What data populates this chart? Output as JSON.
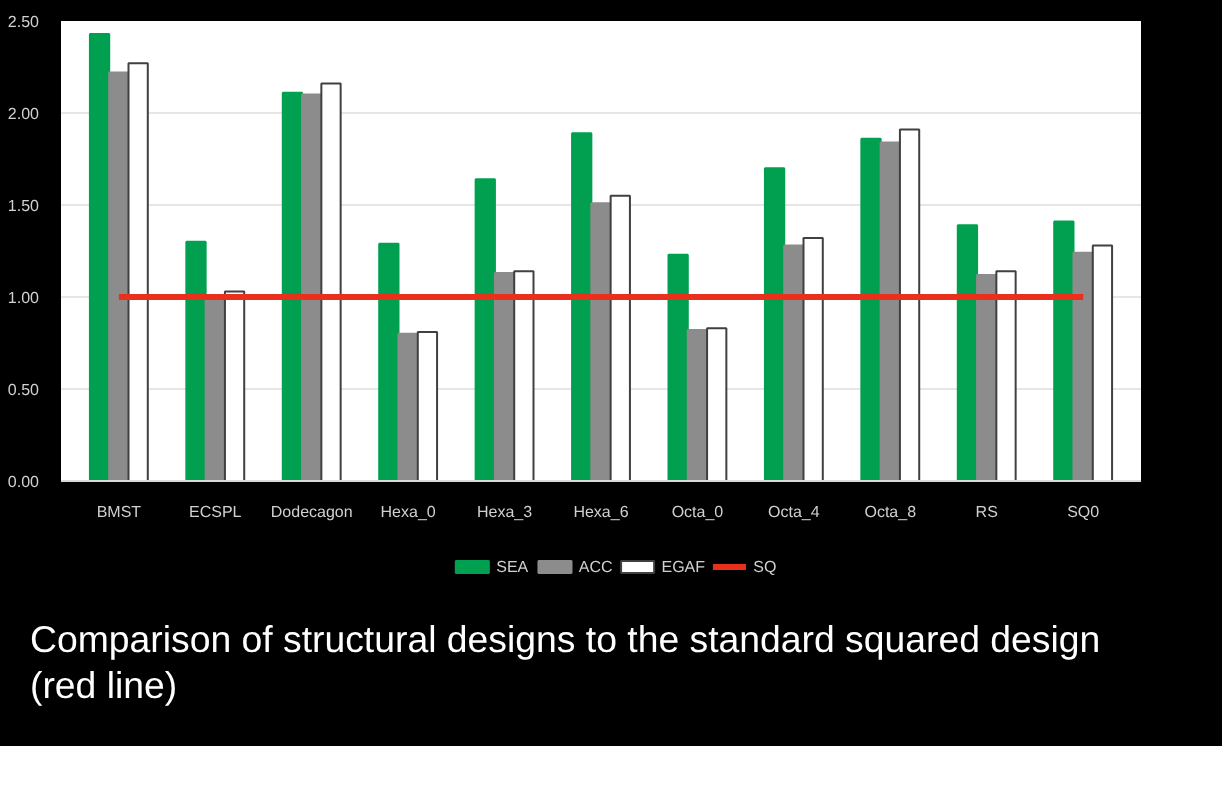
{
  "chart_data": {
    "type": "bar",
    "categories": [
      "BMST",
      "ECSPL",
      "Dodecagon",
      "Hexa_0",
      "Hexa_3",
      "Hexa_6",
      "Octa_0",
      "Octa_4",
      "Octa_8",
      "RS",
      "SQ0"
    ],
    "series": [
      {
        "name": "SEA",
        "color": "#00a050",
        "values": [
          2.43,
          1.3,
          2.11,
          1.29,
          1.64,
          1.89,
          1.23,
          1.7,
          1.86,
          1.39,
          1.41
        ]
      },
      {
        "name": "ACC",
        "color": "#8c8c8c",
        "values": [
          2.22,
          1.0,
          2.1,
          0.8,
          1.13,
          1.51,
          0.82,
          1.28,
          1.84,
          1.12,
          1.24
        ]
      },
      {
        "name": "EGAF",
        "color": "#ffffff",
        "values": [
          2.27,
          1.03,
          2.16,
          0.81,
          1.14,
          1.55,
          0.83,
          1.32,
          1.91,
          1.14,
          1.28
        ]
      },
      {
        "name": "SQ",
        "color": "#e8301c",
        "type": "line",
        "values": [
          1.0,
          1.0,
          1.0,
          1.0,
          1.0,
          1.0,
          1.0,
          1.0,
          1.0,
          1.0,
          1.0
        ]
      }
    ],
    "ylim": [
      0,
      2.5
    ],
    "yticks": [
      {
        "value": 0,
        "label": "0.00"
      },
      {
        "value": 0.5,
        "label": "0.50"
      },
      {
        "value": 1.0,
        "label": "1.00"
      },
      {
        "value": 1.5,
        "label": "1.50"
      },
      {
        "value": 2.0,
        "label": "2.00"
      },
      {
        "value": 2.5,
        "label": "2.50"
      }
    ],
    "grid": "y",
    "legend": "bottom",
    "annotations": [
      "Comparison of structural designs to the standard squared design (red line)"
    ]
  }
}
